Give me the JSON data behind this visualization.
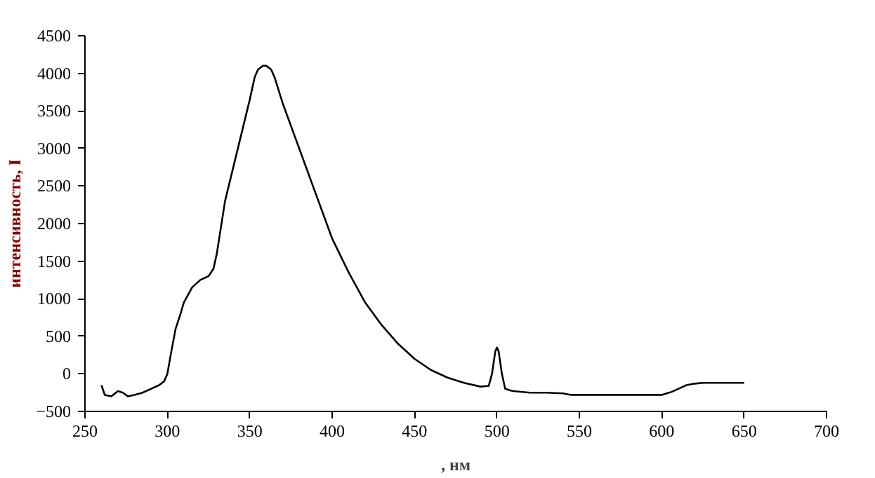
{
  "chart_data": {
    "type": "line",
    "xlabel": ", нм",
    "ylabel": "интенсивность, I",
    "x": [
      260,
      262,
      266,
      270,
      273,
      276,
      280,
      285,
      290,
      295,
      298,
      300,
      302,
      305,
      308,
      310,
      315,
      320,
      325,
      328,
      330,
      335,
      340,
      345,
      350,
      353,
      355,
      358,
      360,
      363,
      365,
      370,
      375,
      380,
      385,
      390,
      395,
      400,
      410,
      420,
      430,
      440,
      450,
      460,
      470,
      480,
      490,
      495,
      497,
      499,
      500,
      501,
      503,
      505,
      508,
      510,
      520,
      530,
      540,
      545,
      550,
      560,
      580,
      600,
      603,
      606,
      610,
      615,
      620,
      625,
      630,
      650
    ],
    "series": [
      {
        "color": "#000000",
        "values": [
          -150,
          -280,
          -300,
          -230,
          -250,
          -300,
          -280,
          -250,
          -200,
          -150,
          -100,
          0,
          250,
          600,
          800,
          950,
          1150,
          1250,
          1300,
          1400,
          1600,
          2300,
          2750,
          3200,
          3650,
          3950,
          4050,
          4100,
          4100,
          4050,
          3950,
          3600,
          3300,
          3000,
          2700,
          2400,
          2100,
          1800,
          1350,
          950,
          650,
          400,
          200,
          50,
          -50,
          -120,
          -170,
          -160,
          0,
          300,
          350,
          300,
          0,
          -200,
          -220,
          -230,
          -250,
          -250,
          -260,
          -280,
          -280,
          -280,
          -280,
          -280,
          -260,
          -240,
          -200,
          -150,
          -130,
          -120,
          -120,
          -120
        ]
      }
    ],
    "xlim": [
      250,
      700
    ],
    "xticks": [
      250,
      300,
      350,
      400,
      450,
      500,
      550,
      600,
      650,
      700
    ],
    "ylim": [
      -500,
      4500
    ],
    "yticks": [
      -500,
      0,
      500,
      1000,
      1500,
      2000,
      2500,
      3000,
      3500,
      4000,
      4500
    ],
    "line_style": "solid"
  }
}
